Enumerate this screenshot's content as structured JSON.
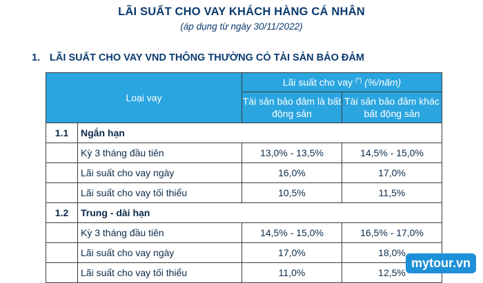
{
  "title": "LÃI SUẤT CHO VAY KHÁCH HÀNG CÁ NHÂN",
  "subtitle": "(áp dụng từ ngày 30/11/2022)",
  "section": {
    "number": "1.",
    "heading": "LÃI SUẤT CHO VAY VND THÔNG THƯỜNG CÓ TÀI SẢN BẢO ĐẢM"
  },
  "table": {
    "header_left": "Loại vay",
    "header_group": "Lãi suất cho vay",
    "header_group_sup": "(*)",
    "header_group_unit": "(%/năm)",
    "col1": "Tài sản bảo đảm là bất động sản",
    "col2": "Tài sản bảo đảm khác bất động sản",
    "groups": [
      {
        "index": "1.1",
        "name": "Ngắn hạn",
        "rows": [
          {
            "label": "Kỳ 3 tháng đầu tiên",
            "v1": "13,0% - 13,5%",
            "v2": "14,5% - 15,0%"
          },
          {
            "label": "Lãi suất cho vay ngày",
            "v1": "16,0%",
            "v2": "17,0%"
          },
          {
            "label": "Lãi suất cho vay tối thiểu",
            "v1": "10,5%",
            "v2": "11,5%"
          }
        ]
      },
      {
        "index": "1.2",
        "name": "Trung - dài hạn",
        "rows": [
          {
            "label": "Kỳ 3 tháng đầu tiên",
            "v1": "14,5% - 15,0%",
            "v2": "16,5% - 17,0%"
          },
          {
            "label": "Lãi suất cho vay ngày",
            "v1": "17,0%",
            "v2": "18,0%"
          },
          {
            "label": "Lãi suất cho vay tối thiểu",
            "v1": "11,0%",
            "v2": "12,5%"
          }
        ]
      }
    ]
  },
  "watermark": "mytour.vn"
}
